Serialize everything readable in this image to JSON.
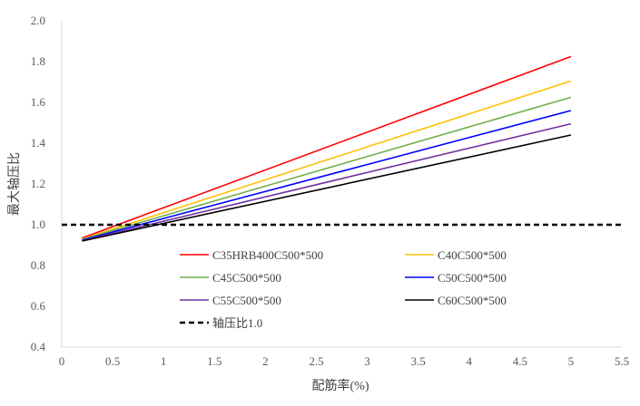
{
  "chart_data": {
    "type": "line",
    "title": "",
    "xlabel": "配筋率(%)",
    "ylabel": "最大轴压比",
    "xlim": [
      0,
      5.5
    ],
    "ylim": [
      0.4,
      2.0
    ],
    "x_ticks": [
      "0",
      "0.5",
      "1",
      "1.5",
      "2",
      "2.5",
      "3",
      "3.5",
      "4",
      "4.5",
      "5",
      "5.5"
    ],
    "y_ticks": [
      "0.4",
      "0.6",
      "0.8",
      "1.0",
      "1.2",
      "1.4",
      "1.6",
      "1.8",
      "2.0"
    ],
    "grid": false,
    "legend_position": "bottom-right inside plot",
    "series": [
      {
        "name": "C35HRB400C500*500",
        "color": "#ff0000",
        "x": [
          0.2,
          5
        ],
        "y": [
          0.935,
          1.825
        ]
      },
      {
        "name": "C40C500*500",
        "color": "#ffc000",
        "x": [
          0.2,
          5
        ],
        "y": [
          0.93,
          1.705
        ]
      },
      {
        "name": "C45C500*500",
        "color": "#70ad47",
        "x": [
          0.2,
          5
        ],
        "y": [
          0.928,
          1.625
        ]
      },
      {
        "name": "C50C500*500",
        "color": "#0000ff",
        "x": [
          0.2,
          5
        ],
        "y": [
          0.925,
          1.56
        ]
      },
      {
        "name": "C55C500*500",
        "color": "#7030a0",
        "x": [
          0.2,
          5
        ],
        "y": [
          0.922,
          1.495
        ]
      },
      {
        "name": "C60C500*500",
        "color": "#000000",
        "x": [
          0.2,
          5
        ],
        "y": [
          0.92,
          1.44
        ]
      },
      {
        "name": "轴压比1.0",
        "color": "#000000",
        "dashed": true,
        "x": [
          0,
          5.5
        ],
        "y": [
          1.0,
          1.0
        ]
      }
    ]
  }
}
